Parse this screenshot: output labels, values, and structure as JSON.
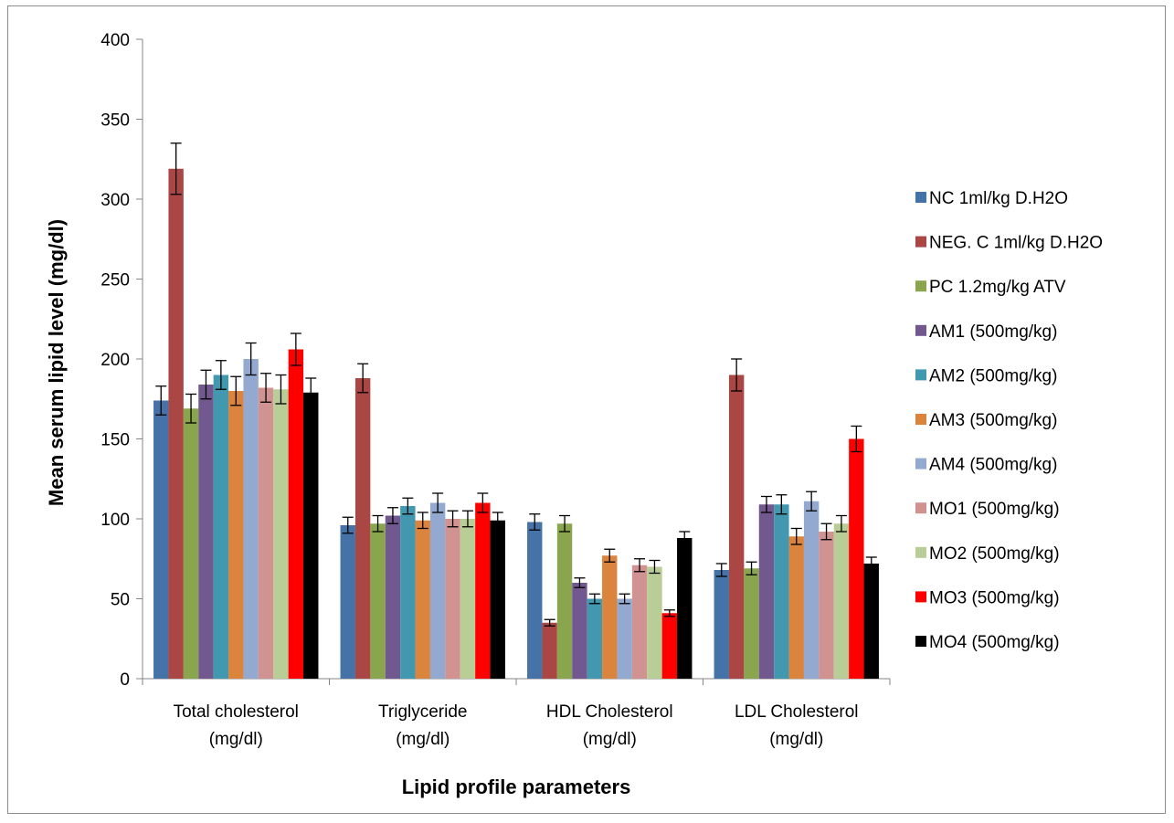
{
  "chart_data": {
    "type": "bar",
    "title": "",
    "xlabel": "Lipid profile parameters",
    "ylabel": "Mean serum lipid level (mg/dl)",
    "ylim": [
      0,
      400
    ],
    "yticks": [
      0,
      50,
      100,
      150,
      200,
      250,
      300,
      350,
      400
    ],
    "grid": false,
    "legend_position": "right",
    "categories": [
      [
        "Total cholesterol",
        "(mg/dl)"
      ],
      [
        "Triglyceride",
        "(mg/dl)"
      ],
      [
        "HDL Cholesterol",
        "(mg/dl)"
      ],
      [
        "LDL Cholesterol",
        "(mg/dl)"
      ]
    ],
    "series": [
      {
        "name": "NC 1ml/kg D.H2O",
        "color": "#4572a7",
        "values": [
          174,
          96,
          98,
          68
        ],
        "errors": [
          9,
          5,
          5,
          4
        ]
      },
      {
        "name": "NEG. C 1ml/kg D.H2O",
        "color": "#aa4643",
        "values": [
          319,
          188,
          35,
          190
        ],
        "errors": [
          16,
          9,
          2,
          10
        ]
      },
      {
        "name": "PC 1.2mg/kg ATV",
        "color": "#89a54e",
        "values": [
          169,
          97,
          97,
          69
        ],
        "errors": [
          9,
          5,
          5,
          4
        ]
      },
      {
        "name": "AM1 (500mg/kg)",
        "color": "#71588f",
        "values": [
          184,
          102,
          60,
          109
        ],
        "errors": [
          9,
          5,
          3,
          5
        ]
      },
      {
        "name": "AM2 (500mg/kg)",
        "color": "#4198af",
        "values": [
          190,
          108,
          50,
          109
        ],
        "errors": [
          9,
          5,
          3,
          6
        ]
      },
      {
        "name": "AM3 (500mg/kg)",
        "color": "#db843d",
        "values": [
          180,
          99,
          77,
          89
        ],
        "errors": [
          9,
          5,
          4,
          5
        ]
      },
      {
        "name": "AM4 (500mg/kg)",
        "color": "#93a9cf",
        "values": [
          200,
          110,
          50,
          111
        ],
        "errors": [
          10,
          6,
          3,
          6
        ]
      },
      {
        "name": "MO1 (500mg/kg)",
        "color": "#d19392",
        "values": [
          182,
          100,
          71,
          92
        ],
        "errors": [
          9,
          5,
          4,
          5
        ]
      },
      {
        "name": "MO2 (500mg/kg)",
        "color": "#b9cd96",
        "values": [
          181,
          100,
          70,
          97
        ],
        "errors": [
          9,
          5,
          4,
          5
        ]
      },
      {
        "name": "MO3 (500mg/kg)",
        "color": "#ff0000",
        "values": [
          206,
          110,
          41,
          150
        ],
        "errors": [
          10,
          6,
          2,
          8
        ]
      },
      {
        "name": "MO4 (500mg/kg)",
        "color": "#000000",
        "values": [
          179,
          99,
          88,
          72
        ],
        "errors": [
          9,
          5,
          4,
          4
        ]
      }
    ]
  }
}
